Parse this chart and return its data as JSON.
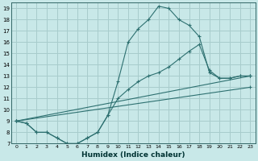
{
  "title": "",
  "xlabel": "Humidex (Indice chaleur)",
  "ylabel": "",
  "background_color": "#c8e8e8",
  "grid_color": "#a8cccc",
  "line_color": "#2d7070",
  "xlim": [
    -0.5,
    23.5
  ],
  "ylim": [
    7,
    19.5
  ],
  "xticks": [
    0,
    1,
    2,
    3,
    4,
    5,
    6,
    7,
    8,
    9,
    10,
    11,
    12,
    13,
    14,
    15,
    16,
    17,
    18,
    19,
    20,
    21,
    22,
    23
  ],
  "yticks": [
    7,
    8,
    9,
    10,
    11,
    12,
    13,
    14,
    15,
    16,
    17,
    18,
    19
  ],
  "line1_x": [
    0,
    1,
    2,
    3,
    4,
    5,
    6,
    7,
    8,
    9,
    10,
    11,
    12,
    13,
    14,
    15,
    16,
    17,
    18,
    19,
    20,
    21,
    22,
    23
  ],
  "line1_y": [
    9.0,
    8.8,
    8.0,
    8.0,
    7.5,
    7.0,
    7.0,
    7.5,
    8.0,
    9.5,
    12.5,
    16.0,
    17.2,
    18.0,
    19.2,
    19.0,
    18.0,
    17.5,
    16.5,
    13.3,
    12.8,
    12.8,
    13.0,
    13.0
  ],
  "line2_x": [
    0,
    1,
    2,
    3,
    4,
    5,
    6,
    7,
    8,
    9,
    10,
    11,
    12,
    13,
    14,
    15,
    16,
    17,
    18,
    19,
    20,
    21,
    22,
    23
  ],
  "line2_y": [
    9.0,
    8.8,
    8.0,
    8.0,
    7.5,
    7.0,
    7.0,
    7.5,
    8.0,
    9.5,
    11.0,
    11.8,
    12.5,
    13.0,
    13.3,
    13.8,
    14.5,
    15.2,
    15.8,
    13.5,
    12.8,
    12.8,
    13.0,
    13.0
  ],
  "line3_x": [
    0,
    23
  ],
  "line3_y": [
    9.0,
    13.0
  ],
  "line4_x": [
    0,
    23
  ],
  "line4_y": [
    9.0,
    12.0
  ]
}
